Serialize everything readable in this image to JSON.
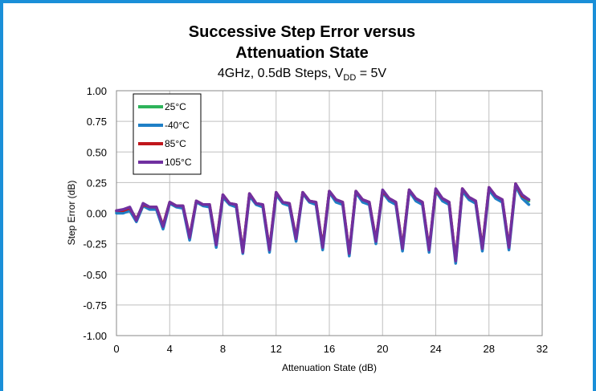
{
  "chart_data": {
    "type": "line",
    "title_line1": "Successive Step Error versus",
    "title_line2": "Attenuation State",
    "subtitle_prefix": "4GHz,  0.5dB Steps, V",
    "subtitle_sub": "DD",
    "subtitle_suffix": " = 5V",
    "xlabel": "Attenuation State (dB)",
    "ylabel": "Step Error (dB)",
    "xlim": [
      0,
      32
    ],
    "ylim": [
      -1.0,
      1.0
    ],
    "x_ticks": [
      0,
      4,
      8,
      12,
      16,
      20,
      24,
      28,
      32
    ],
    "x_tick_labels": [
      "0",
      "4",
      "8",
      "12",
      "16",
      "20",
      "24",
      "28",
      "32"
    ],
    "y_ticks": [
      1.0,
      0.75,
      0.5,
      0.25,
      0.0,
      -0.25,
      -0.5,
      -0.75,
      -1.0
    ],
    "y_tick_labels": [
      "1.00",
      "0.75",
      "0.50",
      "0.25",
      "0.00",
      "-0.25",
      "-0.50",
      "-0.75",
      "-1.00"
    ],
    "grid": true,
    "legend_position": "top-left",
    "x": [
      0,
      0.5,
      1,
      1.5,
      2,
      2.5,
      3,
      3.5,
      4,
      4.5,
      5,
      5.5,
      6,
      6.5,
      7,
      7.5,
      8,
      8.5,
      9,
      9.5,
      10,
      10.5,
      11,
      11.5,
      12,
      12.5,
      13,
      13.5,
      14,
      14.5,
      15,
      15.5,
      16,
      16.5,
      17,
      17.5,
      18,
      18.5,
      19,
      19.5,
      20,
      20.5,
      21,
      21.5,
      22,
      22.5,
      23,
      23.5,
      24,
      24.5,
      25,
      25.5,
      26,
      26.5,
      27,
      27.5,
      28,
      28.5,
      29,
      29.5,
      30,
      30.5,
      31
    ],
    "series": [
      {
        "name": "25°C",
        "color": "#2db35a",
        "values": [
          0.01,
          0.02,
          0.04,
          -0.05,
          0.07,
          0.05,
          0.04,
          -0.1,
          0.09,
          0.06,
          0.05,
          -0.2,
          0.1,
          0.07,
          0.06,
          -0.26,
          0.14,
          0.08,
          0.06,
          -0.31,
          0.15,
          0.08,
          0.06,
          -0.3,
          0.16,
          0.09,
          0.07,
          -0.21,
          0.17,
          0.1,
          0.08,
          -0.28,
          0.18,
          0.1,
          0.08,
          -0.33,
          0.18,
          0.1,
          0.08,
          -0.23,
          0.18,
          0.11,
          0.08,
          -0.29,
          0.19,
          0.11,
          0.08,
          -0.3,
          0.19,
          0.11,
          0.08,
          -0.39,
          0.19,
          0.12,
          0.09,
          -0.29,
          0.2,
          0.13,
          0.1,
          -0.28,
          0.23,
          0.14,
          0.1
        ]
      },
      {
        "name": "-40°C",
        "color": "#1f7fc6",
        "values": [
          0.0,
          0.0,
          0.02,
          -0.07,
          0.06,
          0.03,
          0.03,
          -0.13,
          0.08,
          0.05,
          0.04,
          -0.22,
          0.09,
          0.06,
          0.05,
          -0.28,
          0.13,
          0.07,
          0.05,
          -0.33,
          0.14,
          0.07,
          0.05,
          -0.32,
          0.15,
          0.08,
          0.06,
          -0.23,
          0.16,
          0.09,
          0.07,
          -0.3,
          0.17,
          0.09,
          0.07,
          -0.35,
          0.17,
          0.09,
          0.07,
          -0.25,
          0.17,
          0.1,
          0.07,
          -0.31,
          0.18,
          0.1,
          0.07,
          -0.32,
          0.18,
          0.1,
          0.07,
          -0.41,
          0.18,
          0.11,
          0.08,
          -0.31,
          0.19,
          0.12,
          0.09,
          -0.3,
          0.22,
          0.12,
          0.07
        ]
      },
      {
        "name": "85°C",
        "color": "#c0161c",
        "values": [
          0.02,
          0.02,
          0.04,
          -0.05,
          0.07,
          0.05,
          0.05,
          -0.1,
          0.09,
          0.06,
          0.06,
          -0.19,
          0.1,
          0.07,
          0.07,
          -0.25,
          0.15,
          0.08,
          0.07,
          -0.31,
          0.16,
          0.08,
          0.07,
          -0.29,
          0.17,
          0.09,
          0.08,
          -0.2,
          0.17,
          0.1,
          0.09,
          -0.27,
          0.18,
          0.11,
          0.09,
          -0.32,
          0.18,
          0.11,
          0.09,
          -0.22,
          0.18,
          0.12,
          0.09,
          -0.28,
          0.19,
          0.12,
          0.09,
          -0.29,
          0.19,
          0.12,
          0.09,
          -0.38,
          0.2,
          0.13,
          0.1,
          -0.28,
          0.21,
          0.14,
          0.11,
          -0.27,
          0.24,
          0.14,
          0.11
        ]
      },
      {
        "name": "105°C",
        "color": "#7030a0",
        "values": [
          0.02,
          0.03,
          0.05,
          -0.06,
          0.08,
          0.05,
          0.05,
          -0.11,
          0.09,
          0.06,
          0.06,
          -0.2,
          0.1,
          0.07,
          0.07,
          -0.26,
          0.15,
          0.08,
          0.07,
          -0.32,
          0.16,
          0.08,
          0.07,
          -0.3,
          0.17,
          0.09,
          0.08,
          -0.21,
          0.17,
          0.1,
          0.09,
          -0.28,
          0.18,
          0.11,
          0.09,
          -0.33,
          0.18,
          0.11,
          0.09,
          -0.23,
          0.19,
          0.12,
          0.09,
          -0.29,
          0.19,
          0.12,
          0.09,
          -0.3,
          0.2,
          0.12,
          0.09,
          -0.39,
          0.2,
          0.13,
          0.1,
          -0.29,
          0.21,
          0.14,
          0.11,
          -0.28,
          0.24,
          0.15,
          0.11
        ]
      }
    ]
  }
}
